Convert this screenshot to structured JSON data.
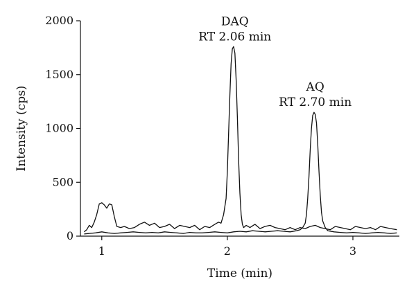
{
  "chart_data": {
    "type": "line",
    "title": "",
    "xlabel": "Time (min)",
    "ylabel": "Intensity (cps)",
    "xlim": [
      0.83,
      3.37
    ],
    "ylim": [
      0,
      2000
    ],
    "xticks": [
      1,
      2,
      3
    ],
    "yticks": [
      0,
      500,
      1000,
      1500,
      2000
    ],
    "grid": false,
    "legend": "none",
    "annotations": [
      {
        "line1": "DAQ",
        "line2": "RT 2.06 min",
        "x": 2.06,
        "y": 1760
      },
      {
        "line1": "AQ",
        "line2": "RT 2.70 min",
        "x": 2.7,
        "y": 1150
      }
    ],
    "series": [
      {
        "x": [
          0.86,
          0.88,
          0.9,
          0.92,
          0.94,
          0.96,
          0.98,
          1.0,
          1.02,
          1.04,
          1.06,
          1.08,
          1.1,
          1.12,
          1.15,
          1.18,
          1.22,
          1.26,
          1.3,
          1.34,
          1.38,
          1.42,
          1.46,
          1.5,
          1.54,
          1.58,
          1.62,
          1.66,
          1.7,
          1.74,
          1.78,
          1.82,
          1.86,
          1.9,
          1.93,
          1.95,
          1.97,
          1.99,
          2.0,
          2.01,
          2.02,
          2.03,
          2.04,
          2.05,
          2.06,
          2.07,
          2.08,
          2.09,
          2.1,
          2.11,
          2.12,
          2.13,
          2.15,
          2.18,
          2.22,
          2.26,
          2.3,
          2.34,
          2.38,
          2.42,
          2.46,
          2.5,
          2.54,
          2.58,
          2.62,
          2.66,
          2.7,
          2.74,
          2.78,
          2.82,
          2.86,
          2.9,
          2.94,
          2.98,
          3.02,
          3.06,
          3.1,
          3.14,
          3.18,
          3.22,
          3.26,
          3.3,
          3.35
        ],
        "y": [
          40,
          60,
          100,
          80,
          130,
          200,
          300,
          310,
          290,
          260,
          300,
          290,
          180,
          90,
          80,
          90,
          70,
          80,
          110,
          130,
          100,
          120,
          80,
          90,
          110,
          70,
          100,
          90,
          80,
          100,
          60,
          90,
          80,
          110,
          130,
          120,
          200,
          350,
          600,
          950,
          1300,
          1600,
          1740,
          1760,
          1700,
          1450,
          1100,
          700,
          400,
          200,
          110,
          80,
          100,
          80,
          110,
          70,
          90,
          100,
          80,
          70,
          60,
          80,
          60,
          80,
          70,
          90,
          100,
          80,
          70,
          60,
          90,
          80,
          70,
          60,
          90,
          80,
          70,
          80,
          60,
          90,
          80,
          70,
          60
        ]
      },
      {
        "x": [
          0.86,
          0.9,
          0.95,
          1.0,
          1.05,
          1.1,
          1.15,
          1.2,
          1.25,
          1.3,
          1.35,
          1.4,
          1.45,
          1.5,
          1.55,
          1.6,
          1.65,
          1.7,
          1.75,
          1.8,
          1.85,
          1.9,
          1.95,
          2.0,
          2.05,
          2.1,
          2.15,
          2.2,
          2.25,
          2.3,
          2.35,
          2.4,
          2.45,
          2.5,
          2.55,
          2.58,
          2.6,
          2.62,
          2.63,
          2.64,
          2.65,
          2.66,
          2.67,
          2.68,
          2.69,
          2.7,
          2.71,
          2.72,
          2.73,
          2.74,
          2.75,
          2.76,
          2.78,
          2.8,
          2.85,
          2.9,
          2.95,
          3.0,
          3.05,
          3.1,
          3.15,
          3.2,
          3.25,
          3.3,
          3.35
        ],
        "y": [
          20,
          25,
          30,
          40,
          30,
          25,
          30,
          35,
          40,
          35,
          30,
          35,
          30,
          40,
          35,
          30,
          25,
          35,
          30,
          30,
          35,
          40,
          35,
          30,
          40,
          45,
          40,
          50,
          45,
          40,
          45,
          50,
          45,
          40,
          50,
          60,
          80,
          120,
          200,
          350,
          550,
          800,
          1000,
          1120,
          1150,
          1130,
          1050,
          850,
          600,
          380,
          220,
          140,
          80,
          50,
          40,
          35,
          30,
          35,
          30,
          25,
          30,
          35,
          30,
          25,
          30
        ]
      }
    ]
  }
}
